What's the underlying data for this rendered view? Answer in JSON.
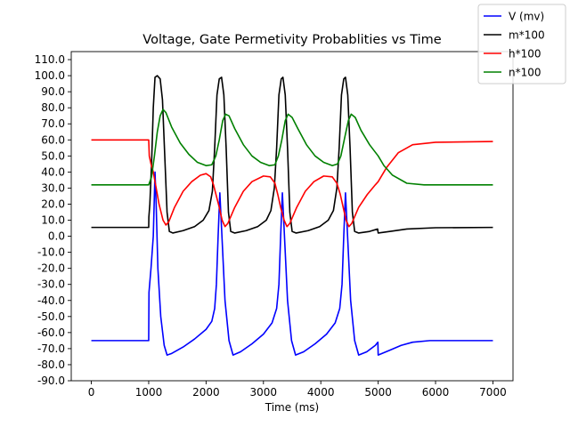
{
  "chart_data": {
    "type": "line",
    "title": "Voltage, Gate Permetivity Probablities vs Time",
    "xlabel": "Time (ms)",
    "ylabel": "",
    "xlim": [
      -350,
      7350
    ],
    "ylim": [
      -90,
      115
    ],
    "x_ticks": [
      0,
      1000,
      2000,
      3000,
      4000,
      5000,
      6000,
      7000
    ],
    "x_tick_labels": [
      "0",
      "1000",
      "2000",
      "3000",
      "4000",
      "5000",
      "6000",
      "7000"
    ],
    "y_ticks": [
      -90,
      -80,
      -70,
      -60,
      -50,
      -40,
      -30,
      -20,
      -10,
      0,
      10,
      20,
      30,
      40,
      50,
      60,
      70,
      80,
      90,
      100,
      110
    ],
    "y_tick_labels": [
      "-90.0",
      "-80.0",
      "-70.0",
      "-60.0",
      "-50.0",
      "-40.0",
      "-30.0",
      "-20.0",
      "-10.0",
      "0.0",
      "10.0",
      "20.0",
      "30.0",
      "40.0",
      "50.0",
      "60.0",
      "70.0",
      "80.0",
      "90.0",
      "100.0",
      "110.0"
    ],
    "grid": false,
    "legend_position": "top-right (outside plot)",
    "series": [
      {
        "name": "V (mv)",
        "color": "#0000ff",
        "points": [
          [
            0,
            -65
          ],
          [
            1000,
            -65
          ],
          [
            1005,
            -35
          ],
          [
            1040,
            -20
          ],
          [
            1080,
            0
          ],
          [
            1110,
            40
          ],
          [
            1130,
            20
          ],
          [
            1160,
            -20
          ],
          [
            1210,
            -50
          ],
          [
            1270,
            -68
          ],
          [
            1320,
            -74
          ],
          [
            1400,
            -73
          ],
          [
            1600,
            -69
          ],
          [
            1800,
            -64
          ],
          [
            2000,
            -58
          ],
          [
            2100,
            -53
          ],
          [
            2150,
            -45
          ],
          [
            2180,
            -30
          ],
          [
            2210,
            0
          ],
          [
            2240,
            27
          ],
          [
            2270,
            5
          ],
          [
            2330,
            -40
          ],
          [
            2400,
            -65
          ],
          [
            2470,
            -74
          ],
          [
            2600,
            -72
          ],
          [
            2800,
            -67
          ],
          [
            3000,
            -61
          ],
          [
            3150,
            -54
          ],
          [
            3230,
            -45
          ],
          [
            3270,
            -30
          ],
          [
            3300,
            0
          ],
          [
            3330,
            27
          ],
          [
            3360,
            5
          ],
          [
            3420,
            -40
          ],
          [
            3490,
            -65
          ],
          [
            3560,
            -74
          ],
          [
            3700,
            -72
          ],
          [
            3900,
            -67
          ],
          [
            4100,
            -61
          ],
          [
            4250,
            -54
          ],
          [
            4330,
            -45
          ],
          [
            4370,
            -30
          ],
          [
            4400,
            0
          ],
          [
            4430,
            27
          ],
          [
            4460,
            5
          ],
          [
            4520,
            -40
          ],
          [
            4590,
            -65
          ],
          [
            4660,
            -74
          ],
          [
            4800,
            -72
          ],
          [
            4950,
            -68
          ],
          [
            4995,
            -66
          ],
          [
            5000,
            -74
          ],
          [
            5200,
            -71
          ],
          [
            5400,
            -68
          ],
          [
            5600,
            -66
          ],
          [
            5900,
            -65
          ],
          [
            6500,
            -65
          ],
          [
            7000,
            -65
          ]
        ]
      },
      {
        "name": "m*100",
        "color": "#000000",
        "points": [
          [
            0,
            5.5
          ],
          [
            1000,
            5.5
          ],
          [
            1003,
            12
          ],
          [
            1020,
            20
          ],
          [
            1050,
            45
          ],
          [
            1080,
            80
          ],
          [
            1110,
            99
          ],
          [
            1150,
            100
          ],
          [
            1200,
            98
          ],
          [
            1240,
            85
          ],
          [
            1280,
            50
          ],
          [
            1320,
            15
          ],
          [
            1360,
            3
          ],
          [
            1420,
            2
          ],
          [
            1600,
            3.5
          ],
          [
            1800,
            6
          ],
          [
            1950,
            10
          ],
          [
            2050,
            16
          ],
          [
            2110,
            28
          ],
          [
            2150,
            55
          ],
          [
            2190,
            88
          ],
          [
            2230,
            98
          ],
          [
            2270,
            99
          ],
          [
            2310,
            88
          ],
          [
            2350,
            55
          ],
          [
            2390,
            15
          ],
          [
            2430,
            3
          ],
          [
            2500,
            2
          ],
          [
            2700,
            3.5
          ],
          [
            2900,
            6
          ],
          [
            3050,
            10
          ],
          [
            3130,
            16
          ],
          [
            3190,
            30
          ],
          [
            3230,
            55
          ],
          [
            3270,
            88
          ],
          [
            3310,
            98
          ],
          [
            3340,
            99
          ],
          [
            3380,
            88
          ],
          [
            3420,
            55
          ],
          [
            3460,
            15
          ],
          [
            3500,
            3
          ],
          [
            3570,
            2
          ],
          [
            3780,
            3.5
          ],
          [
            3980,
            6
          ],
          [
            4130,
            10
          ],
          [
            4220,
            16
          ],
          [
            4280,
            30
          ],
          [
            4320,
            55
          ],
          [
            4360,
            88
          ],
          [
            4400,
            98
          ],
          [
            4430,
            99
          ],
          [
            4470,
            88
          ],
          [
            4510,
            55
          ],
          [
            4550,
            15
          ],
          [
            4590,
            3
          ],
          [
            4660,
            2
          ],
          [
            4850,
            3
          ],
          [
            4990,
            4.5
          ],
          [
            5000,
            2
          ],
          [
            5200,
            3
          ],
          [
            5500,
            4.5
          ],
          [
            6000,
            5.3
          ],
          [
            7000,
            5.5
          ]
        ]
      },
      {
        "name": "h*100",
        "color": "#ff0000",
        "points": [
          [
            0,
            60
          ],
          [
            1000,
            60
          ],
          [
            1010,
            50
          ],
          [
            1040,
            45
          ],
          [
            1080,
            40
          ],
          [
            1130,
            30
          ],
          [
            1180,
            20
          ],
          [
            1250,
            10
          ],
          [
            1300,
            7
          ],
          [
            1350,
            9
          ],
          [
            1450,
            18
          ],
          [
            1600,
            28
          ],
          [
            1750,
            34
          ],
          [
            1900,
            38
          ],
          [
            2000,
            39
          ],
          [
            2080,
            37
          ],
          [
            2130,
            32
          ],
          [
            2180,
            25
          ],
          [
            2230,
            18
          ],
          [
            2280,
            10
          ],
          [
            2330,
            6
          ],
          [
            2380,
            8
          ],
          [
            2500,
            18
          ],
          [
            2650,
            28
          ],
          [
            2800,
            34
          ],
          [
            3000,
            37.5
          ],
          [
            3120,
            37
          ],
          [
            3200,
            33
          ],
          [
            3250,
            26
          ],
          [
            3300,
            18
          ],
          [
            3360,
            10
          ],
          [
            3410,
            6
          ],
          [
            3460,
            8
          ],
          [
            3580,
            18
          ],
          [
            3730,
            28
          ],
          [
            3880,
            34
          ],
          [
            4050,
            37.5
          ],
          [
            4200,
            37
          ],
          [
            4280,
            33
          ],
          [
            4340,
            26
          ],
          [
            4390,
            18
          ],
          [
            4440,
            10
          ],
          [
            4490,
            6
          ],
          [
            4540,
            8
          ],
          [
            4660,
            18
          ],
          [
            4810,
            26
          ],
          [
            4950,
            32
          ],
          [
            5000,
            34
          ],
          [
            5150,
            43
          ],
          [
            5350,
            52
          ],
          [
            5600,
            57
          ],
          [
            6000,
            58.5
          ],
          [
            7000,
            59
          ]
        ]
      },
      {
        "name": "n*100",
        "color": "#008000",
        "points": [
          [
            0,
            32
          ],
          [
            1000,
            32
          ],
          [
            1050,
            37
          ],
          [
            1100,
            50
          ],
          [
            1150,
            65
          ],
          [
            1200,
            75
          ],
          [
            1250,
            79
          ],
          [
            1300,
            77
          ],
          [
            1400,
            68
          ],
          [
            1550,
            58
          ],
          [
            1700,
            51
          ],
          [
            1850,
            46
          ],
          [
            2000,
            44
          ],
          [
            2100,
            44.5
          ],
          [
            2170,
            50
          ],
          [
            2230,
            60
          ],
          [
            2290,
            72
          ],
          [
            2340,
            76
          ],
          [
            2400,
            75
          ],
          [
            2500,
            67
          ],
          [
            2650,
            57
          ],
          [
            2800,
            50
          ],
          [
            2950,
            46
          ],
          [
            3100,
            44
          ],
          [
            3200,
            44.5
          ],
          [
            3260,
            50
          ],
          [
            3320,
            60
          ],
          [
            3380,
            72
          ],
          [
            3430,
            76
          ],
          [
            3500,
            74
          ],
          [
            3600,
            67
          ],
          [
            3750,
            57
          ],
          [
            3900,
            50
          ],
          [
            4050,
            46
          ],
          [
            4200,
            44
          ],
          [
            4290,
            45
          ],
          [
            4350,
            50
          ],
          [
            4420,
            62
          ],
          [
            4480,
            72
          ],
          [
            4530,
            76
          ],
          [
            4600,
            74
          ],
          [
            4700,
            66
          ],
          [
            4850,
            57
          ],
          [
            5000,
            50
          ],
          [
            5100,
            44
          ],
          [
            5250,
            38
          ],
          [
            5500,
            33
          ],
          [
            5800,
            32
          ],
          [
            6200,
            32
          ],
          [
            7000,
            32
          ]
        ]
      }
    ]
  }
}
